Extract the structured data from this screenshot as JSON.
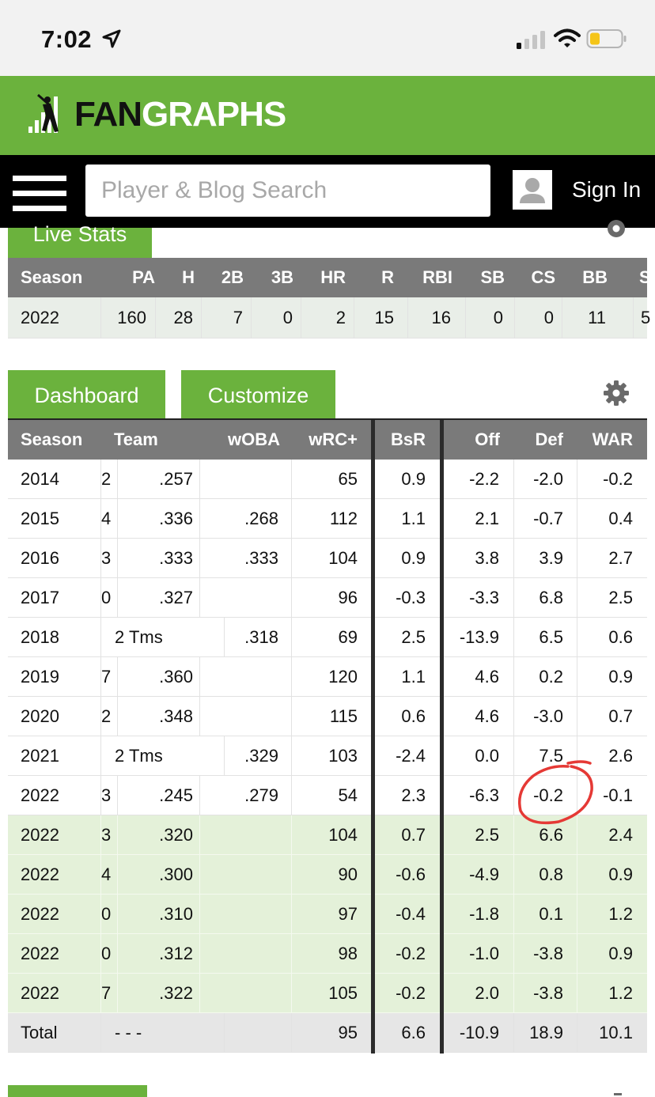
{
  "status_bar": {
    "time": "7:02"
  },
  "brand": {
    "logo_text_1": "FAN",
    "logo_text_2": "GRAPHS"
  },
  "nav": {
    "search_placeholder": "Player & Blog Search",
    "sign_in": "Sign In"
  },
  "live_stats": {
    "tab_label": "Live Stats",
    "headers": [
      "Season",
      "PA",
      "H",
      "2B",
      "3B",
      "HR",
      "R",
      "RBI",
      "SB",
      "CS",
      "BB",
      "S"
    ],
    "row": [
      "2022",
      "160",
      "28",
      "7",
      "0",
      "2",
      "15",
      "16",
      "0",
      "0",
      "11",
      "5"
    ]
  },
  "dashboard": {
    "tab_dashboard": "Dashboard",
    "tab_customize": "Customize",
    "headers": [
      "Season",
      "Team",
      "wOBA",
      "wRC+",
      "BsR",
      "Off",
      "Def",
      "WAR"
    ],
    "rows": [
      {
        "type": "std",
        "season": "2014",
        "team": "2",
        "avg": ".257",
        "woba": "",
        "wrc": "65",
        "bsr": "0.9",
        "off": "-2.2",
        "def": "-2.0",
        "war": "-0.2"
      },
      {
        "type": "std",
        "season": "2015",
        "team": "4",
        "avg": ".336",
        "woba": ".268",
        "wrc": "112",
        "bsr": "1.1",
        "off": "2.1",
        "def": "-0.7",
        "war": "0.4"
      },
      {
        "type": "std",
        "season": "2016",
        "team": "3",
        "avg": ".333",
        "woba": ".333",
        "wrc": "104",
        "bsr": "0.9",
        "off": "3.8",
        "def": "3.9",
        "war": "2.7"
      },
      {
        "type": "std",
        "season": "2017",
        "team": "0",
        "avg": ".327",
        "woba": "",
        "wrc": "96",
        "bsr": "-0.3",
        "off": "-3.3",
        "def": "6.8",
        "war": "2.5"
      },
      {
        "type": "tms",
        "season": "2018",
        "team": "2 Tms",
        "woba": ".318",
        "wrc": "69",
        "bsr": "2.5",
        "off": "-13.9",
        "def": "6.5",
        "war": "0.6"
      },
      {
        "type": "std",
        "season": "2019",
        "team": "7",
        "avg": ".360",
        "woba": "",
        "wrc": "120",
        "bsr": "1.1",
        "off": "4.6",
        "def": "0.2",
        "war": "0.9"
      },
      {
        "type": "std",
        "season": "2020",
        "team": "2",
        "avg": ".348",
        "woba": "",
        "wrc": "115",
        "bsr": "0.6",
        "off": "4.6",
        "def": "-3.0",
        "war": "0.7"
      },
      {
        "type": "tms",
        "season": "2021",
        "team": "2 Tms",
        "woba": ".329",
        "wrc": "103",
        "bsr": "-2.4",
        "off": "0.0",
        "def": "7.5",
        "war": "2.6"
      },
      {
        "type": "std",
        "season": "2022",
        "team": "3",
        "avg": ".245",
        "woba": ".279",
        "wrc": "54",
        "bsr": "2.3",
        "off": "-6.3",
        "def": "-0.2",
        "war": "-0.1"
      },
      {
        "type": "proj",
        "season": "2022",
        "team": "3",
        "avg": ".320",
        "woba": "",
        "wrc": "104",
        "bsr": "0.7",
        "off": "2.5",
        "def": "6.6",
        "war": "2.4"
      },
      {
        "type": "proj",
        "season": "2022",
        "team": "4",
        "avg": ".300",
        "woba": "",
        "wrc": "90",
        "bsr": "-0.6",
        "off": "-4.9",
        "def": "0.8",
        "war": "0.9"
      },
      {
        "type": "proj",
        "season": "2022",
        "team": "0",
        "avg": ".310",
        "woba": "",
        "wrc": "97",
        "bsr": "-0.4",
        "off": "-1.8",
        "def": "0.1",
        "war": "1.2"
      },
      {
        "type": "proj",
        "season": "2022",
        "team": "0",
        "avg": ".312",
        "woba": "",
        "wrc": "98",
        "bsr": "-0.2",
        "off": "-1.0",
        "def": "-3.8",
        "war": "0.9"
      },
      {
        "type": "proj",
        "season": "2022",
        "team": "7",
        "avg": ".322",
        "woba": "",
        "wrc": "105",
        "bsr": "-0.2",
        "off": "2.0",
        "def": "-3.8",
        "war": "1.2"
      },
      {
        "type": "total",
        "season": "Total",
        "team": "- - -",
        "woba": "",
        "wrc": "95",
        "bsr": "6.6",
        "off": "-10.9",
        "def": "18.9",
        "war": "10.1"
      }
    ]
  },
  "colors": {
    "brand_green": "#6bb23d",
    "header_gray": "#7a7a7a",
    "projection_green": "#e4f1d9",
    "annotation_red": "#e53935"
  }
}
